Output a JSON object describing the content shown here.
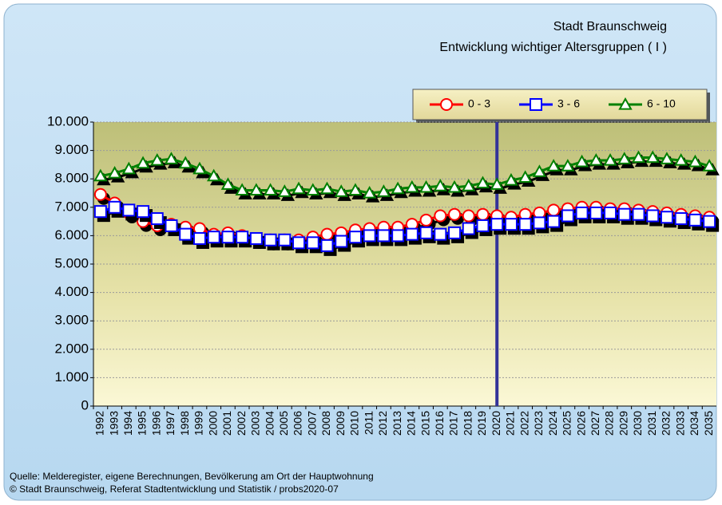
{
  "chart_data": {
    "type": "line",
    "title": "Stadt Braunschweig",
    "subtitle": "Entwicklung wichtiger Altersgruppen ( I )",
    "notes": [
      "Quelle: Melderegister, eigene Berechnungen, Bevölkerung am Ort der Hauptwohnung",
      "© Stadt Braunschweig, Referat Stadtentwicklung und Statistik / probs2020-07"
    ],
    "categories": [
      "1992",
      "1993",
      "1994",
      "1995",
      "1996",
      "1997",
      "1998",
      "1999",
      "2000",
      "2001",
      "2002",
      "2003",
      "2004",
      "2005",
      "2006",
      "2007",
      "2008",
      "2009",
      "2010",
      "2011",
      "2012",
      "2013",
      "2014",
      "2015",
      "2016",
      "2017",
      "2018",
      "2019",
      "2020",
      "2021",
      "2022",
      "2023",
      "2024",
      "2025",
      "2026",
      "2027",
      "2028",
      "2029",
      "2030",
      "2031",
      "2032",
      "2033",
      "2034",
      "2035"
    ],
    "series": [
      {
        "name": "0 - 3",
        "color": "#ff0000",
        "marker": "circle",
        "values": [
          7450,
          7150,
          6800,
          6500,
          6350,
          6400,
          6300,
          6250,
          6050,
          6100,
          6000,
          5900,
          5850,
          5850,
          5850,
          5950,
          6050,
          6100,
          6200,
          6250,
          6300,
          6300,
          6400,
          6550,
          6700,
          6750,
          6700,
          6750,
          6700,
          6650,
          6750,
          6800,
          6900,
          6950,
          7000,
          7000,
          6950,
          6950,
          6900,
          6850,
          6800,
          6750,
          6700,
          6650
        ]
      },
      {
        "name": "3 - 6",
        "color": "#0000ff",
        "marker": "square",
        "values": [
          6850,
          7000,
          6900,
          6850,
          6600,
          6350,
          6050,
          5900,
          5950,
          5950,
          5950,
          5900,
          5850,
          5850,
          5750,
          5750,
          5650,
          5800,
          5950,
          6000,
          6000,
          6000,
          6050,
          6100,
          6050,
          6100,
          6250,
          6350,
          6400,
          6400,
          6400,
          6450,
          6500,
          6700,
          6800,
          6800,
          6800,
          6750,
          6750,
          6700,
          6650,
          6600,
          6550,
          6500
        ]
      },
      {
        "name": "6 - 10",
        "color": "#008000",
        "marker": "triangle",
        "values": [
          8100,
          8200,
          8350,
          8550,
          8650,
          8700,
          8550,
          8350,
          8100,
          7800,
          7600,
          7600,
          7600,
          7550,
          7650,
          7600,
          7650,
          7550,
          7600,
          7500,
          7550,
          7650,
          7700,
          7700,
          7750,
          7700,
          7750,
          7850,
          7800,
          7950,
          8050,
          8250,
          8450,
          8450,
          8600,
          8650,
          8650,
          8700,
          8750,
          8750,
          8700,
          8650,
          8600,
          8450
        ]
      }
    ],
    "ylim": [
      0,
      10000
    ],
    "yticks": [
      0,
      {
        "value": 1000,
        "label": "1.000"
      },
      {
        "value": 2000,
        "label": "2.000"
      },
      {
        "value": 3000,
        "label": "3.000"
      },
      {
        "value": 4000,
        "label": "4.000"
      },
      {
        "value": 5000,
        "label": "5.000"
      },
      {
        "value": 6000,
        "label": "6.000"
      },
      {
        "value": 7000,
        "label": "7.000"
      },
      {
        "value": 8000,
        "label": "8.000"
      },
      {
        "value": 9000,
        "label": "9.000"
      },
      {
        "value": 10000,
        "label": "10.000"
      }
    ],
    "grid": true,
    "reference_category": "2020",
    "reference_color": "#333399",
    "legend": "top-right"
  }
}
